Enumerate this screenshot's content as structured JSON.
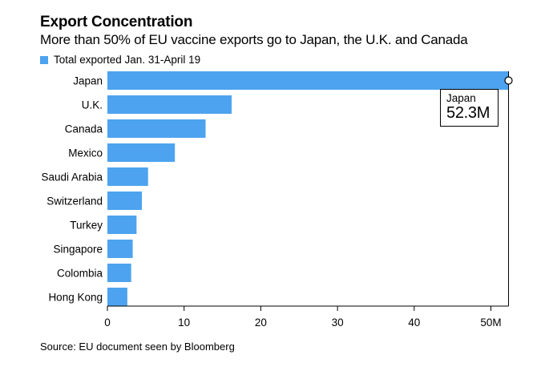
{
  "title": "Export Concentration",
  "subtitle": "More than 50% of EU vaccine exports go to Japan, the U.K. and Canada",
  "source": "Source: EU document seen by Bloomberg",
  "colors": {
    "bar": "#4da3ef",
    "text": "#000000",
    "axis": "#000000"
  },
  "tooltip": {
    "label": "Japan",
    "value": "52.3M"
  },
  "chart_data": {
    "type": "bar",
    "orientation": "horizontal",
    "series": [
      {
        "name": "Total exported Jan. 31-April 19",
        "values": [
          52.3,
          16.2,
          12.8,
          8.8,
          5.3,
          4.5,
          3.8,
          3.3,
          3.1,
          2.6
        ]
      }
    ],
    "categories": [
      "Japan",
      "U.K.",
      "Canada",
      "Mexico",
      "Saudi Arabia",
      "Switzerland",
      "Turkey",
      "Singapore",
      "Colombia",
      "Hong Kong"
    ],
    "xticks": [
      "0",
      "10",
      "20",
      "30",
      "40",
      "50M"
    ],
    "xtick_values": [
      0,
      10,
      20,
      30,
      40,
      50
    ],
    "xlim": [
      0,
      52.3
    ],
    "legend": "top-left",
    "grid": false
  }
}
